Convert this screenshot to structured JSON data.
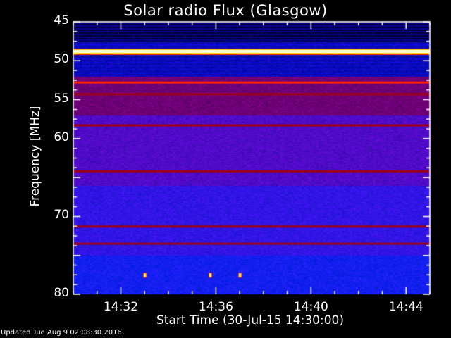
{
  "chart_data": {
    "type": "heatmap",
    "title": "Solar radio Flux (Glasgow)",
    "xlabel": "Start Time (30-Jul-15 14:30:00)",
    "ylabel": "Frequency [MHz]",
    "x_range": [
      "14:30",
      "14:45"
    ],
    "x_ticks": [
      "14:32",
      "14:36",
      "14:40",
      "14:44"
    ],
    "y_range_mhz": [
      45,
      80
    ],
    "y_axis_inverted": true,
    "y_ticks": [
      45,
      50,
      55,
      60,
      70,
      80
    ],
    "colormap": [
      "#000020",
      "#0000ff",
      "#800080",
      "#c00000",
      "#ff2000",
      "#ffff80",
      "#ffffff"
    ],
    "background_level": "blue",
    "bands": [
      {
        "freq_mhz": 48.8,
        "level": "saturated white/yellow"
      },
      {
        "freq_mhz": 52.8,
        "level": "bright red"
      },
      {
        "freq_mhz": 54.3,
        "level": "dark red"
      },
      {
        "freq_mhz": 58.3,
        "level": "dark red"
      },
      {
        "freq_mhz": 64.2,
        "level": "dark red"
      },
      {
        "freq_mhz": 71.3,
        "level": "dark red"
      },
      {
        "freq_mhz": 73.5,
        "level": "dark red"
      }
    ],
    "bursts": [
      {
        "time": "14:33",
        "freq_mhz": 77.5
      },
      {
        "time": "14:35:45",
        "freq_mhz": 77.5
      },
      {
        "time": "14:37:00",
        "freq_mhz": 77.5
      }
    ]
  },
  "footer": {
    "updated": "Updated Tue Aug  9 02:08:30 2016"
  }
}
